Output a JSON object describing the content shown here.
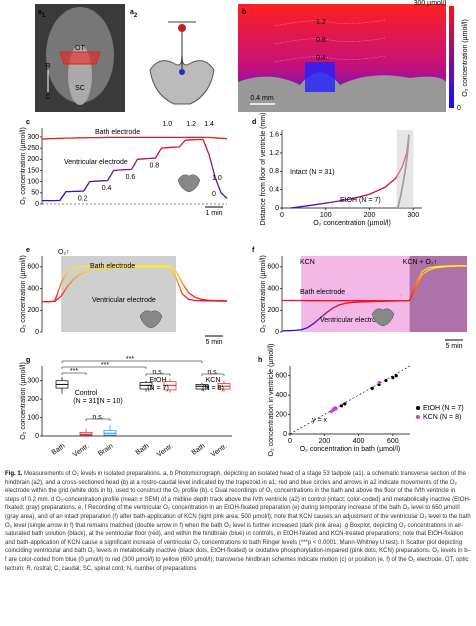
{
  "figure_label": "Fig. 1.",
  "caption": "Measurements of O₂ levels in isolated preparations. a, b Photomicrograph, depicting an isolated head of a stage 53 tadpole (a1), a schematic transverse section of the hindbrain (a2), and a cross-sectioned head (b) at a rostro-caudal level indicated by the trapezoid in a1; red and blue circles and arrows in a2 indicate movements of the O₂ electrode within the grid (white dots in b), used to construct the O₂ profile (b). c Dual recordings of O₂ concentrations in the bath and above the floor of the IVth ventricle in steps of 0.2 mm. d O₂-concentration profile (mean ± SEM) of a midline depth track above the IVth ventricle (a2) in control (intact; color-coded) and metabolically inactive (EtOH-fixated; gray) preparations. e, f Recording of the ventricular O₂ concentration in an EtOH-fixated preparation (e) during temporary increase of the bath O₂ level to 650 µmol/l (gray area), and of an intact preparation (f) after bath-application of KCN (light pink area; 500 µmol/l); note that KCN causes an adjustment of the ventricular O₂ level to the bath O₂ level (single arrow in f) that remains matched (double arrow in f) when the bath O₂ level is further increased (dark pink area). g Boxplot, depicting O₂ concentrations in air-saturated bath solution (black), at the ventricular floor (red), and within the hindbrain (blue) in controls, in EtOH-fixated and KCN-treated preparations; note that EtOH-fixation and bath-application of KCN cause a significant increase of ventricular O₂ concentrations to bath Ringer levels (***p < 0.0001; Mann-Whitney U test). h Scatter plot depicting coinciding ventricular and bath O₂ levels in metabolically inactive (black dots, EtOH-fixated) or oxidative phosphorylation-impaired (pink dots, KCN) preparations. O₂ levels in b–f are color-coded from blue (0 µmol/l) to red (300 µmol/l) to yellow (600 µmol/l); transverse hindbrain schemes indicate motion (c) or position (e, f) of the O₂ electrode. OT, optic tectum; R, rostral; C, caudal; SC, spinal cord; N, number of preparations",
  "colormap": {
    "values": [
      0,
      300,
      600
    ],
    "colors": [
      "#1010ff",
      "#ff1010",
      "#ffee20"
    ]
  },
  "panels": {
    "a1": {
      "letter": "a",
      "sub": "1",
      "texts": [
        "OT",
        "SC",
        "R",
        "C"
      ]
    },
    "a2": {
      "letter": "a",
      "sub": "2"
    },
    "b": {
      "letter": "b",
      "colorbar_top": "300 µmol/l",
      "colorbar_bottom": "0",
      "colorbar_label": "O₂ concentration (µmol/l)",
      "contours": [
        "1.2",
        "0.8",
        "0.4"
      ],
      "scalebar": "0.4 mm"
    },
    "c": {
      "letter": "c",
      "ylabel": "O₂ concentration (µmol/l)",
      "ylim": [
        0,
        340
      ],
      "yticks": [
        0,
        50,
        100,
        150,
        200,
        250,
        300
      ],
      "series": [
        {
          "name": "Bath electrode",
          "color": "#e02020",
          "values": [
            290,
            292,
            293,
            294,
            295,
            295,
            296,
            296,
            297,
            297,
            297,
            298,
            298,
            298,
            298,
            298,
            298,
            298,
            298,
            298,
            298,
            298,
            298,
            298,
            298,
            298,
            298,
            298,
            298,
            296,
            294,
            292
          ]
        },
        {
          "name": "Ventricular electrode",
          "values": [
            15,
            15,
            15,
            16,
            55,
            56,
            57,
            58,
            100,
            102,
            104,
            105,
            150,
            152,
            154,
            155,
            200,
            202,
            204,
            205,
            250,
            252,
            254,
            255,
            285,
            287,
            288,
            289,
            220,
            120,
            50,
            25
          ]
        }
      ],
      "depths": [
        "0.2",
        "0.4",
        "0.6",
        "0.8",
        "1.0",
        "1.2",
        "1.4"
      ],
      "inset": [
        "1.0",
        "0"
      ],
      "scalebar": "1 min"
    },
    "d": {
      "letter": "d",
      "xlabel": "O₂ concentration (µmol/l)",
      "ylabel": "Distance from floor of ventricle (mm)",
      "xlim": [
        0,
        320
      ],
      "xticks": [
        0,
        100,
        200,
        300
      ],
      "ylim": [
        0,
        1.7
      ],
      "yticks": [
        0,
        0.4,
        0.8,
        1.2,
        1.6
      ],
      "series": [
        {
          "name": "Intact (N = 31)",
          "x": [
            20,
            60,
            110,
            160,
            200,
            235,
            260,
            275,
            285,
            290
          ],
          "values": [
            0,
            0.05,
            0.12,
            0.2,
            0.3,
            0.45,
            0.65,
            0.9,
            1.2,
            1.6
          ]
        },
        {
          "name": "EtOH (N = 7)",
          "color": "#9a9a9a",
          "x": [
            265,
            272,
            278,
            283,
            287,
            290
          ],
          "values": [
            0,
            0.3,
            0.6,
            0.9,
            1.2,
            1.6
          ]
        }
      ]
    },
    "e": {
      "letter": "e",
      "ylabel": "O₂ concentration (µmol/l)",
      "ylim": [
        0,
        700
      ],
      "yticks": [
        0,
        200,
        400,
        600
      ],
      "series": [
        {
          "name": "Bath electrode",
          "values": [
            280,
            280,
            285,
            450,
            560,
            590,
            600,
            605,
            608,
            610,
            610,
            610,
            610,
            610,
            610,
            610,
            610,
            610,
            610,
            610,
            610,
            500,
            350,
            300,
            290,
            288,
            287,
            286,
            285,
            285
          ]
        },
        {
          "name": "Ventricular electrode",
          "values": [
            280,
            280,
            282,
            330,
            420,
            490,
            530,
            555,
            570,
            580,
            588,
            592,
            595,
            598,
            600,
            600,
            600,
            600,
            600,
            600,
            600,
            560,
            450,
            360,
            320,
            300,
            292,
            290,
            288,
            287
          ]
        }
      ],
      "stimulus": "O₂↑",
      "scalebar": "5 min"
    },
    "f": {
      "letter": "f",
      "ylabel": "O₂ concentration (µmol/l)",
      "ylim": [
        0,
        700
      ],
      "yticks": [
        0,
        200,
        400,
        600
      ],
      "series": [
        {
          "name": "Bath electrode",
          "values": [
            290,
            290,
            290,
            290,
            288,
            288,
            288,
            288,
            288,
            288,
            288,
            288,
            288,
            288,
            288,
            288,
            288,
            288,
            288,
            288,
            290,
            450,
            560,
            590,
            600,
            605,
            608,
            610,
            610,
            610
          ]
        },
        {
          "name": "Ventricular electrode",
          "values": [
            10,
            12,
            15,
            20,
            40,
            80,
            130,
            180,
            220,
            250,
            265,
            272,
            276,
            278,
            280,
            282,
            284,
            285,
            286,
            287,
            290,
            420,
            530,
            570,
            590,
            598,
            603,
            606,
            608,
            608
          ]
        }
      ],
      "stimuli": [
        "KCN",
        "KCN + O₂↑"
      ],
      "scalebar": "5 min"
    },
    "g": {
      "letter": "g",
      "ylabel": "O₂ concentration (µmol/l)",
      "ylim": [
        0,
        380
      ],
      "yticks": [
        0,
        100,
        200,
        300
      ],
      "categories": [
        "Bath",
        "Ventr.",
        "Brain",
        "Bath",
        "Ventr.",
        "Bath",
        "Ventr."
      ],
      "colors": [
        "#000000",
        "#d62020",
        "#2090e0",
        "#000000",
        "#d62020",
        "#000000",
        "#d62020"
      ],
      "whisker_low": [
        230,
        0,
        0,
        240,
        235,
        245,
        240
      ],
      "q1": [
        260,
        5,
        5,
        255,
        250,
        255,
        255
      ],
      "median": [
        280,
        10,
        15,
        275,
        275,
        270,
        270
      ],
      "q3": [
        300,
        20,
        30,
        290,
        295,
        280,
        285
      ],
      "whisker_high": [
        320,
        40,
        60,
        300,
        310,
        290,
        300
      ],
      "groups": [
        "Control",
        "(N = 31)",
        "(N = 10)",
        "EtOH",
        "(N = 7)",
        "KCN",
        "(N = 8)"
      ],
      "significance": [
        "***",
        "***",
        "***",
        "n.s.",
        "n.s.",
        "n.s."
      ]
    },
    "h": {
      "letter": "h",
      "xlabel": "O₂ concentration in bath (µmol/l)",
      "ylabel": "O₂ concentration in ventricle (µmol/l)",
      "xlim": [
        0,
        700
      ],
      "ylim": [
        0,
        700
      ],
      "xticks": [
        0,
        200,
        400,
        600
      ],
      "yticks": [
        0,
        200,
        400,
        600
      ],
      "identity": "y = x",
      "series": [
        {
          "name": "EtOH (N = 7)",
          "color": "#000000",
          "x": [
            300,
            320,
            480,
            520,
            560,
            600,
            620
          ],
          "values": [
            290,
            310,
            470,
            510,
            550,
            580,
            600
          ]
        },
        {
          "name": "KCN (N = 8)",
          "color": "#d040d0",
          "x": [
            240,
            250,
            255,
            260,
            262,
            265,
            270,
            520
          ],
          "values": [
            230,
            245,
            260,
            255,
            265,
            270,
            262,
            530
          ]
        }
      ]
    }
  }
}
